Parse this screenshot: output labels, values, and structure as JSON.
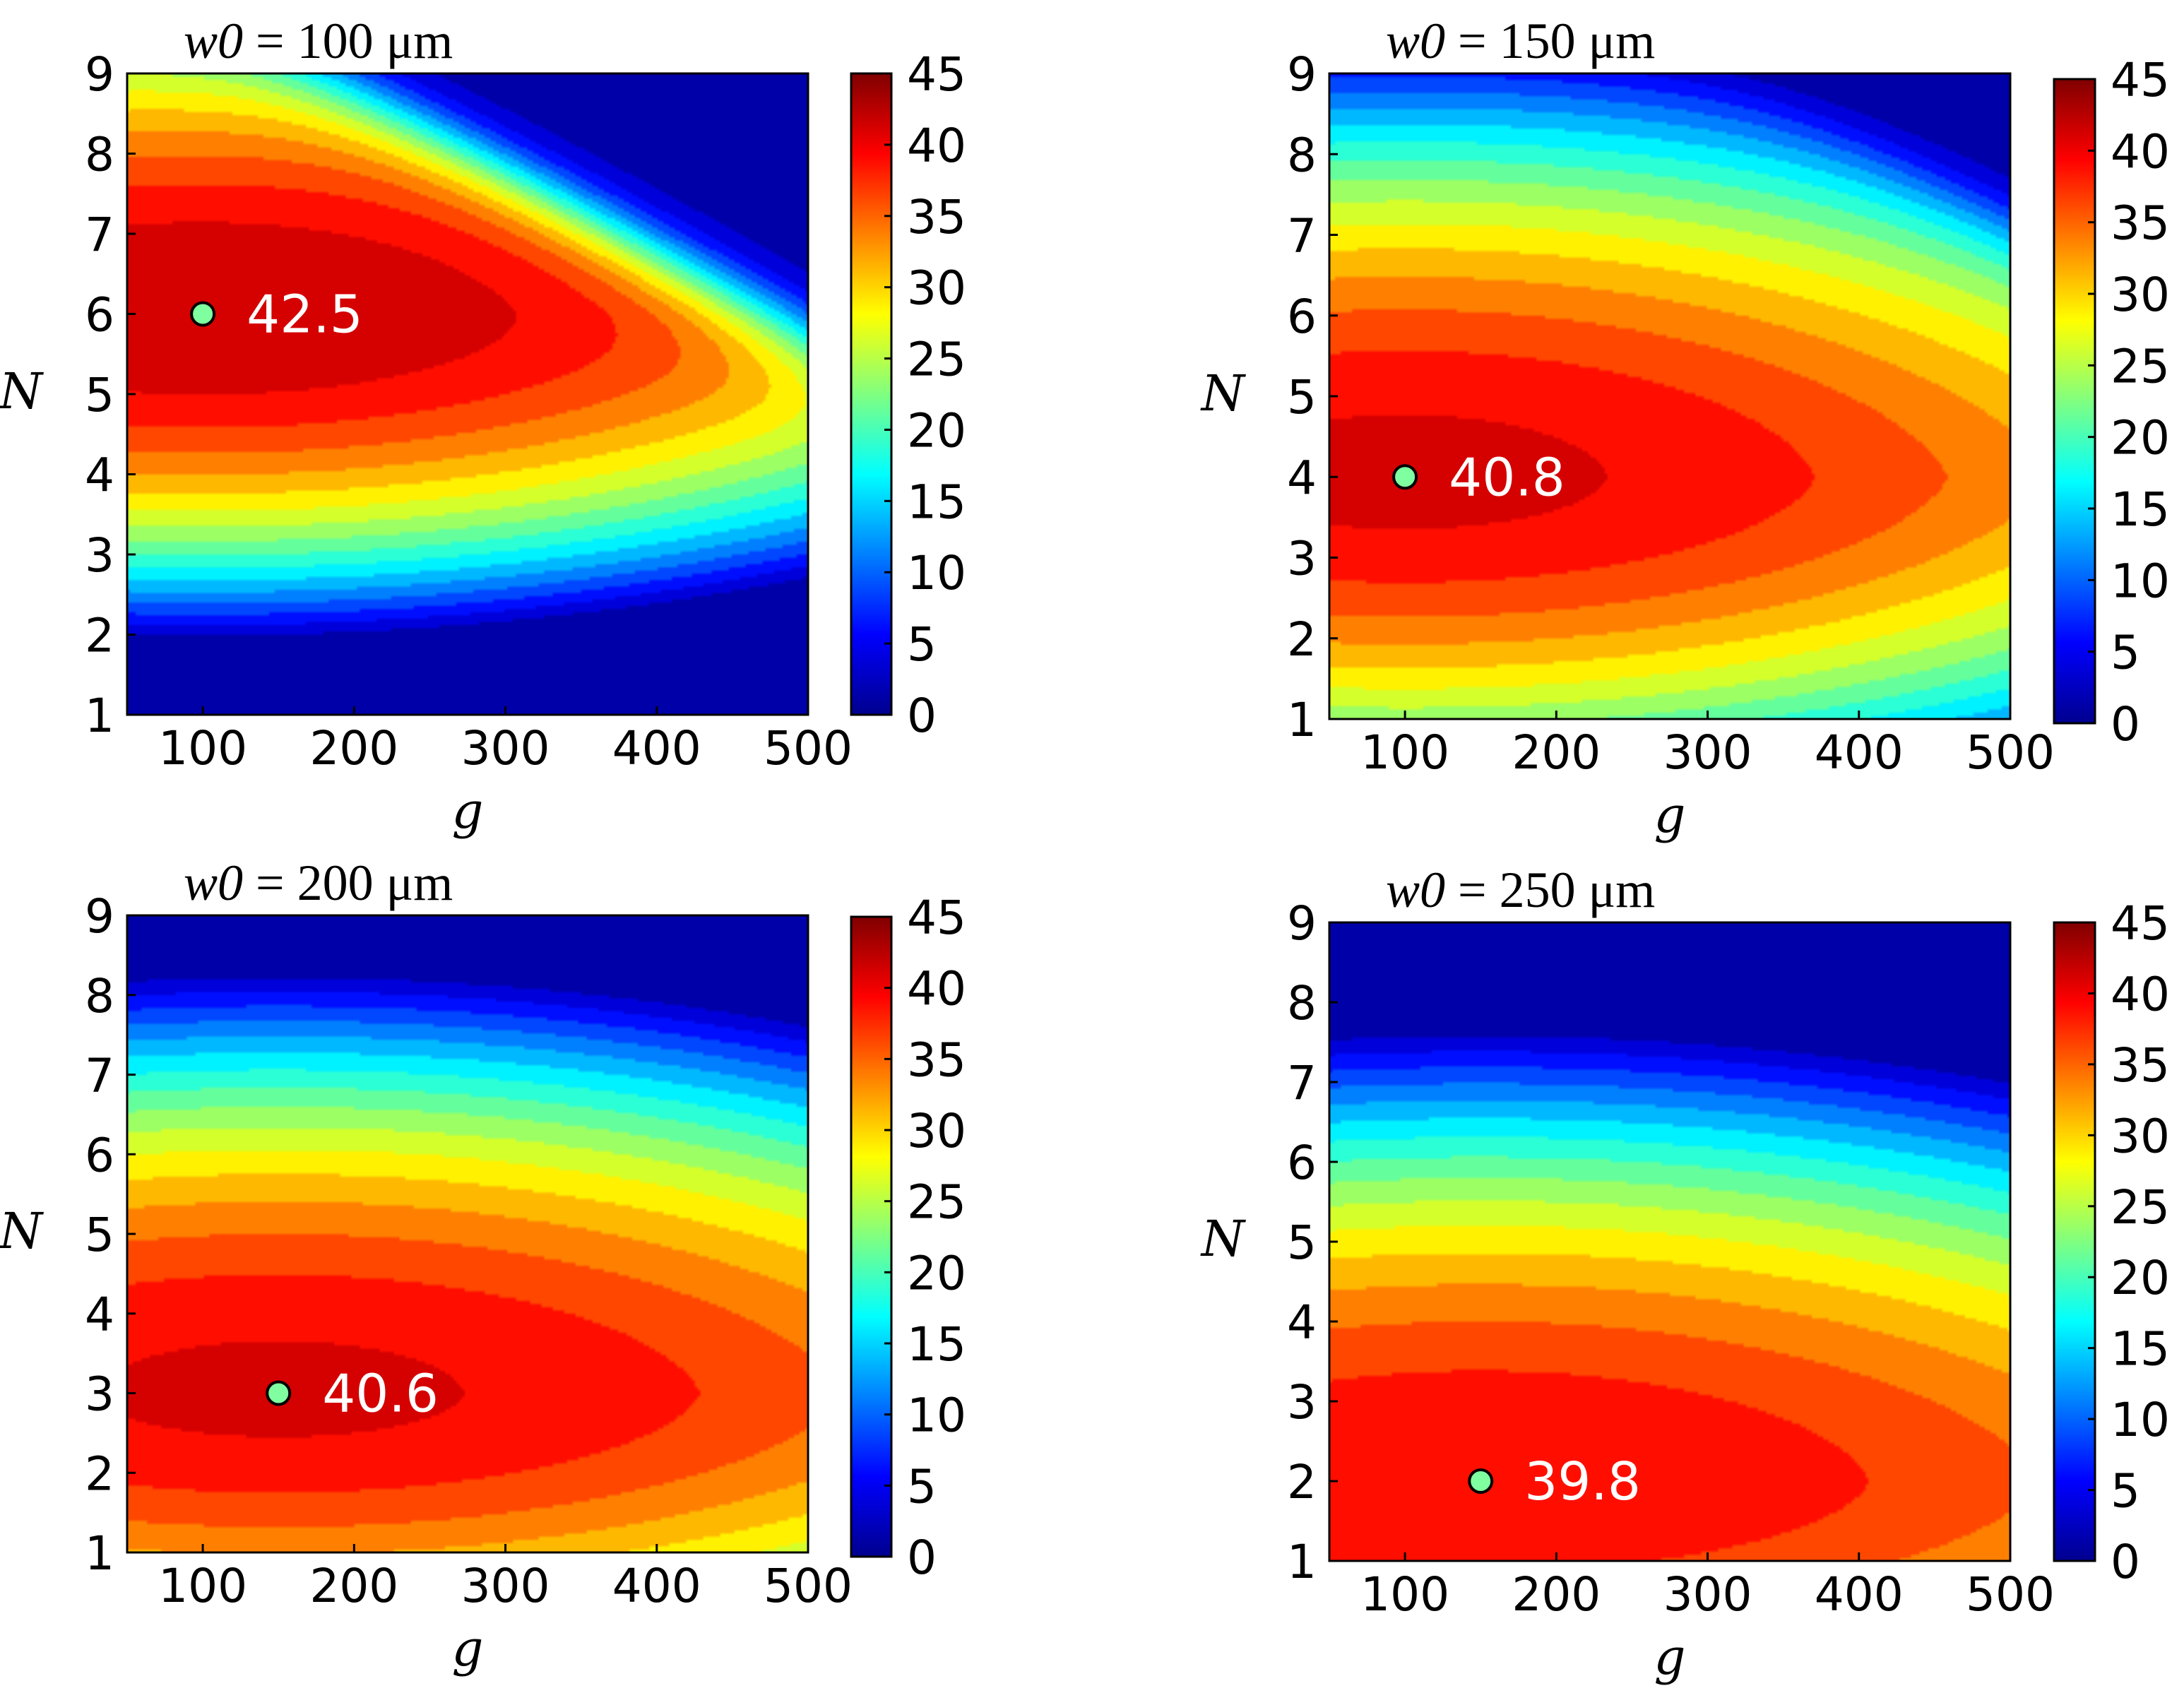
{
  "figure": {
    "colorbar_ticks": [
      "0",
      "5",
      "10",
      "15",
      "20",
      "25",
      "30",
      "35",
      "40",
      "45"
    ],
    "colormap": [
      "#00008f",
      "#0000ff",
      "#0080ff",
      "#00ffff",
      "#80ff80",
      "#ffff00",
      "#ff8000",
      "#ff0000",
      "#800000"
    ],
    "marker_color": "#7fffa0",
    "label_color": "#ffffff"
  },
  "chart_data": [
    {
      "type": "heatmap",
      "title_var": "w0",
      "title_rest": " = 100 μm",
      "xlabel": "g",
      "ylabel": "N",
      "xlim": [
        50,
        500
      ],
      "ylim": [
        1,
        9
      ],
      "x_ticks": [
        "100",
        "200",
        "300",
        "400",
        "500"
      ],
      "y_ticks": [
        "1",
        "2",
        "3",
        "4",
        "5",
        "6",
        "7",
        "8",
        "9"
      ],
      "clim": [
        0,
        45
      ],
      "peak": {
        "g": 100,
        "N": 6,
        "value": 42.5,
        "label": "42.5"
      },
      "shape": {
        "kx": 0.55,
        "ky": 1.9,
        "decay_k": 0.9,
        "base_low": 21,
        "wall": 900
      }
    },
    {
      "type": "heatmap",
      "title_var": "w0",
      "title_rest": " = 150 μm",
      "xlabel": "g",
      "ylabel": "N",
      "xlim": [
        50,
        500
      ],
      "ylim": [
        1,
        9
      ],
      "x_ticks": [
        "100",
        "200",
        "300",
        "400",
        "500"
      ],
      "y_ticks": [
        "1",
        "2",
        "3",
        "4",
        "5",
        "6",
        "7",
        "8",
        "9"
      ],
      "clim": [
        0,
        45
      ],
      "peak": {
        "g": 100,
        "N": 4,
        "value": 40.8,
        "label": "40.8"
      },
      "shape": {
        "kx": 0.45,
        "ky": 1.35,
        "decay_k": 1.1,
        "base_low": 25,
        "wall": 1050
      }
    },
    {
      "type": "heatmap",
      "title_var": "w0",
      "title_rest": " = 200 μm",
      "xlabel": "g",
      "ylabel": "N",
      "xlim": [
        50,
        500
      ],
      "ylim": [
        1,
        9
      ],
      "x_ticks": [
        "100",
        "200",
        "300",
        "400",
        "500"
      ],
      "y_ticks": [
        "1",
        "2",
        "3",
        "4",
        "5",
        "6",
        "7",
        "8",
        "9"
      ],
      "clim": [
        0,
        45
      ],
      "peak": {
        "g": 150,
        "N": 3,
        "value": 40.6,
        "label": "40.6"
      },
      "shape": {
        "kx": 0.4,
        "ky": 1.4,
        "decay_k": 1.1,
        "base_low": 28,
        "wall": 1150
      }
    },
    {
      "type": "heatmap",
      "title_var": "w0",
      "title_rest": " = 250 μm",
      "xlabel": "g",
      "ylabel": "N",
      "xlim": [
        50,
        500
      ],
      "ylim": [
        1,
        9
      ],
      "x_ticks": [
        "100",
        "200",
        "300",
        "400",
        "500"
      ],
      "y_ticks": [
        "1",
        "2",
        "3",
        "4",
        "5",
        "6",
        "7",
        "8",
        "9"
      ],
      "clim": [
        0,
        45
      ],
      "peak": {
        "g": 150,
        "N": 2,
        "value": 39.8,
        "label": "39.8"
      },
      "shape": {
        "kx": 0.35,
        "ky": 1.2,
        "decay_k": 1.2,
        "base_low": 30,
        "wall": 1300
      }
    }
  ]
}
